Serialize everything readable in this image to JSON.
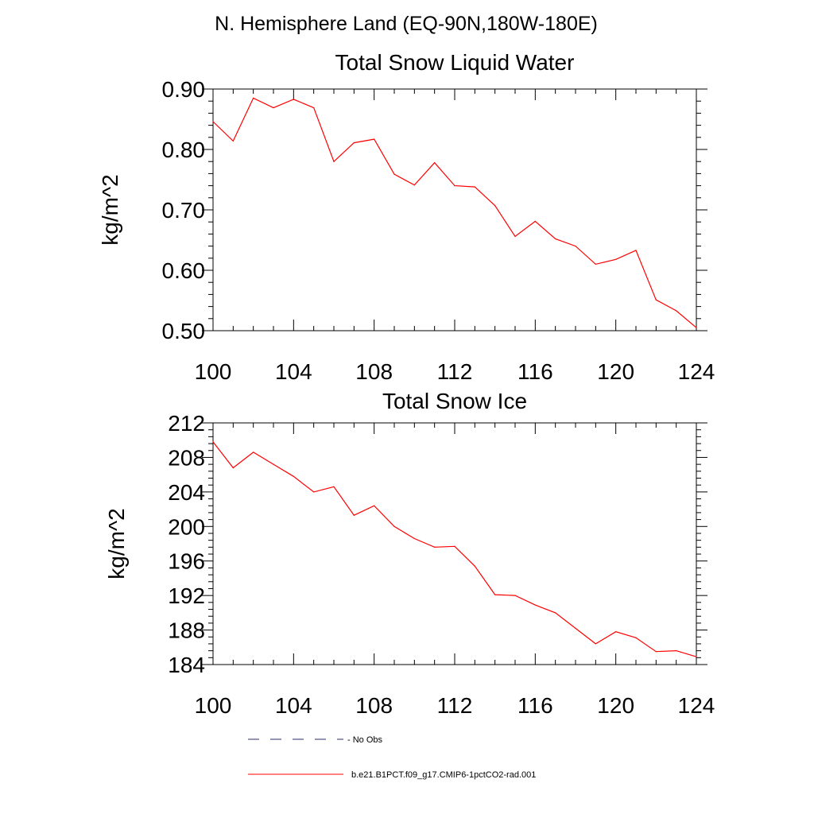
{
  "figure_title": "N. Hemisphere Land (EQ-90N,180W-180E)",
  "colors": {
    "model": "#ff0000",
    "obs": "#2a2a6a",
    "axis": "#000000"
  },
  "legend": {
    "placement": "bottom",
    "entries": [
      {
        "label": "No Obs",
        "style": "dashed",
        "color": "#2a2a6a"
      },
      {
        "label": "b.e21.B1PCT.f09_g17.CMIP6-1pctCO2-rad.001",
        "style": "solid",
        "color": "#ff0000"
      }
    ]
  },
  "chart_data": [
    {
      "type": "line",
      "title": "Total Snow Liquid Water",
      "xlabel": "",
      "ylabel": "kg/m^2",
      "xlim": [
        100,
        124
      ],
      "ylim": [
        0.5,
        0.9
      ],
      "xticks": [
        "100",
        "104",
        "108",
        "112",
        "116",
        "120",
        "124"
      ],
      "yticks": [
        "0.50",
        "0.60",
        "0.70",
        "0.80",
        "0.90"
      ],
      "grid": false,
      "x": [
        100,
        101,
        102,
        103,
        104,
        105,
        106,
        107,
        108,
        109,
        110,
        111,
        112,
        113,
        114,
        115,
        116,
        117,
        118,
        119,
        120,
        121,
        122,
        123,
        124
      ],
      "series": [
        {
          "name": "b.e21.B1PCT.f09_g17.CMIP6-1pctCO2-rad.001",
          "values": [
            0.846,
            0.814,
            0.885,
            0.869,
            0.883,
            0.869,
            0.78,
            0.811,
            0.817,
            0.759,
            0.741,
            0.778,
            0.74,
            0.738,
            0.707,
            0.656,
            0.681,
            0.652,
            0.64,
            0.61,
            0.618,
            0.633,
            0.551,
            0.533,
            0.505
          ]
        }
      ]
    },
    {
      "type": "line",
      "title": "Total Snow Ice",
      "xlabel": "",
      "ylabel": "kg/m^2",
      "xlim": [
        100,
        124
      ],
      "ylim": [
        184,
        212
      ],
      "xticks": [
        "100",
        "104",
        "108",
        "112",
        "116",
        "120",
        "124"
      ],
      "yticks": [
        "184",
        "188",
        "192",
        "196",
        "200",
        "204",
        "208",
        "212"
      ],
      "grid": false,
      "x": [
        100,
        101,
        102,
        103,
        104,
        105,
        106,
        107,
        108,
        109,
        110,
        111,
        112,
        113,
        114,
        115,
        116,
        117,
        118,
        119,
        120,
        121,
        122,
        123,
        124
      ],
      "series": [
        {
          "name": "b.e21.B1PCT.f09_g17.CMIP6-1pctCO2-rad.001",
          "values": [
            209.8,
            206.8,
            208.6,
            207.2,
            205.8,
            204.0,
            204.6,
            201.3,
            202.4,
            200.0,
            198.6,
            197.6,
            197.7,
            195.4,
            192.1,
            192.0,
            190.9,
            190.0,
            188.2,
            186.4,
            187.8,
            187.1,
            185.5,
            185.6,
            184.9
          ]
        }
      ]
    }
  ]
}
